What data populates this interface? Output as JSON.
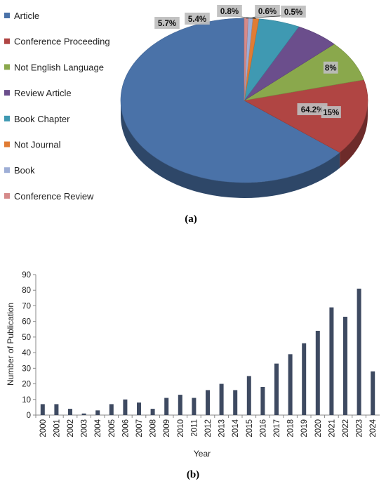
{
  "chart_data": [
    {
      "type": "pie",
      "style": "3d",
      "caption": "(a)",
      "legend_position": "left",
      "slices": [
        {
          "label": "Article",
          "value": 64.2,
          "value_label": "64.2%",
          "color": "#4a72a8"
        },
        {
          "label": "Conference Proceeding",
          "value": 15,
          "value_label": "15%",
          "color": "#b04543"
        },
        {
          "label": "Not English Language",
          "value": 8,
          "value_label": "8%",
          "color": "#8aa84c"
        },
        {
          "label": "Review Article",
          "value": 5.7,
          "value_label": "5.7%",
          "color": "#6b4e8c"
        },
        {
          "label": "Book Chapter",
          "value": 5.4,
          "value_label": "5.4%",
          "color": "#3f99b2"
        },
        {
          "label": "Not Journal",
          "value": 0.8,
          "value_label": "0.8%",
          "color": "#e07c34"
        },
        {
          "label": "Book",
          "value": 0.6,
          "value_label": "0.6%",
          "color": "#9eaed6"
        },
        {
          "label": "Conference Review",
          "value": 0.5,
          "value_label": "0.5%",
          "color": "#d58a8a"
        }
      ]
    },
    {
      "type": "bar",
      "caption": "(b)",
      "xlabel": "Year",
      "ylabel": "Number of Publication",
      "ylim": [
        0,
        90
      ],
      "yticks": [
        0,
        10,
        20,
        30,
        40,
        50,
        60,
        70,
        80,
        90
      ],
      "grid": false,
      "bar_color": "#3e4a61",
      "categories": [
        "2000",
        "2001",
        "2002",
        "2003",
        "2004",
        "2005",
        "2006",
        "2007",
        "2008",
        "2009",
        "2010",
        "2011",
        "2012",
        "2013",
        "2014",
        "2015",
        "2016",
        "2017",
        "2018",
        "2019",
        "2020",
        "2021",
        "2022",
        "2023",
        "2024"
      ],
      "values": [
        7,
        7,
        4,
        1,
        3,
        7,
        10,
        8,
        4,
        11,
        13,
        11,
        16,
        20,
        16,
        25,
        18,
        33,
        39,
        46,
        54,
        69,
        63,
        81,
        28
      ]
    }
  ]
}
